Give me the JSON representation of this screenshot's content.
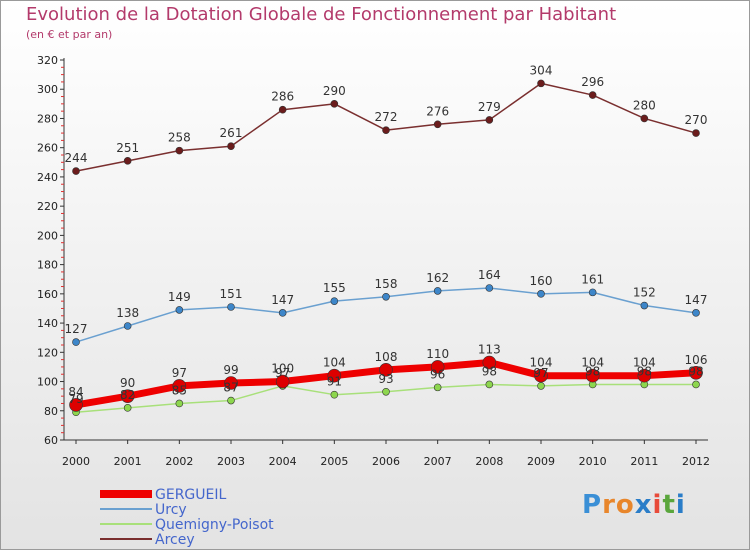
{
  "title": "Evolution de la Dotation Globale de Fonctionnement par Habitant",
  "subtitle": "(en € et par an)",
  "brand": {
    "letters": [
      "P",
      "r",
      "o",
      "x",
      "i",
      "t",
      "i"
    ],
    "colors": [
      "#3a8fd6",
      "#e8862b",
      "#e8862b",
      "#2a7dc8",
      "#e84b3a",
      "#5aa63c",
      "#2a7dc8"
    ]
  },
  "chart_data": {
    "type": "line",
    "title": "Evolution de la Dotation Globale de Fonctionnement par Habitant",
    "xlabel": "",
    "ylabel": "",
    "ylim": [
      60,
      320
    ],
    "yticks": [
      60,
      80,
      100,
      120,
      140,
      160,
      180,
      200,
      220,
      240,
      260,
      280,
      300,
      320
    ],
    "x": [
      "2000",
      "2001",
      "2002",
      "2003",
      "2004",
      "2005",
      "2006",
      "2007",
      "2008",
      "2009",
      "2010",
      "2011",
      "2012"
    ],
    "grid": false,
    "legend_position": "bottom-left",
    "series": [
      {
        "name": "Arcey",
        "color": "#7a2f2f",
        "point_color": "#6b1c1c",
        "width": 1.5,
        "values": [
          244,
          251,
          258,
          261,
          286,
          290,
          272,
          276,
          279,
          304,
          296,
          280,
          270
        ]
      },
      {
        "name": "Urcy",
        "color": "#6aa0d0",
        "point_color": "#3d86c9",
        "width": 1.5,
        "values": [
          127,
          138,
          149,
          151,
          147,
          155,
          158,
          162,
          164,
          160,
          161,
          152,
          147
        ]
      },
      {
        "name": "Quemigny-Poisot",
        "color": "#a8e07a",
        "point_color": "#8dd64e",
        "width": 1.5,
        "values": [
          79,
          82,
          85,
          87,
          97,
          91,
          93,
          96,
          98,
          97,
          98,
          98,
          98
        ]
      },
      {
        "name": "GERGUEIL",
        "color": "#ee0000",
        "point_color": "#dd0000",
        "width": 7,
        "values": [
          84,
          90,
          97,
          99,
          100,
          104,
          108,
          110,
          113,
          104,
          104,
          104,
          106
        ]
      }
    ]
  }
}
